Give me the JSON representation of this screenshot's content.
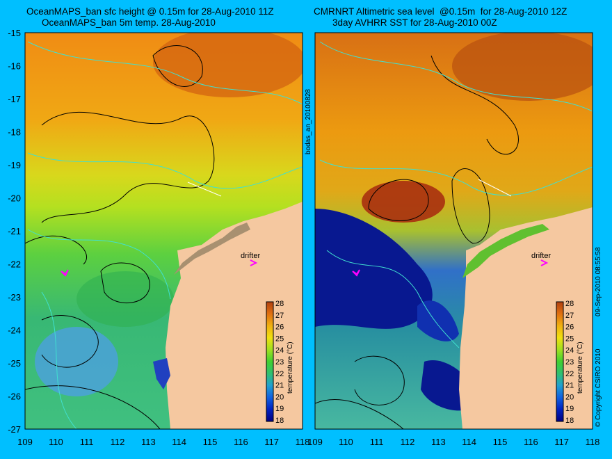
{
  "left_panel": {
    "title_line1": "OceanMAPS_ban sfc height @ 0.15m for 28-Aug-2010 11Z",
    "title_line2": "OceanMAPS_ban 5m temp. 28-Aug-2010",
    "drifter_label": "drifter",
    "colorbar_label": "temperature (°C)"
  },
  "right_panel": {
    "title_line1": "CMRNRT Altimetric sea level  @0.15m  for 28-Aug-2010 12Z",
    "title_line2": "3day AVHRR SST for 28-Aug-2010 00Z",
    "drifter_label": "drifter",
    "colorbar_label": "temperature (°C)"
  },
  "side_text_left": "bodas_an_20100828",
  "side_text_right": "09-Sep-2010 08:55:58",
  "copyright": "© Copyright CSIRO 2010",
  "axes": {
    "lon_ticks": [
      "109",
      "110",
      "111",
      "112",
      "113",
      "114",
      "115",
      "116",
      "117",
      "118"
    ],
    "lat_ticks": [
      "-15",
      "-16",
      "-17",
      "-18",
      "-19",
      "-20",
      "-21",
      "-22",
      "-23",
      "-24",
      "-25",
      "-26",
      "-27"
    ]
  },
  "colorbar_ticks": [
    "28",
    "27",
    "26",
    "25",
    "24",
    "23",
    "22",
    "21",
    "20",
    "19",
    "18"
  ],
  "colors": {
    "background": "#00bfff",
    "land": "#f5c8a0",
    "drifter_marker": "#ff00ff",
    "contour_black": "#000000",
    "contour_cyan": "#40e0d0"
  }
}
